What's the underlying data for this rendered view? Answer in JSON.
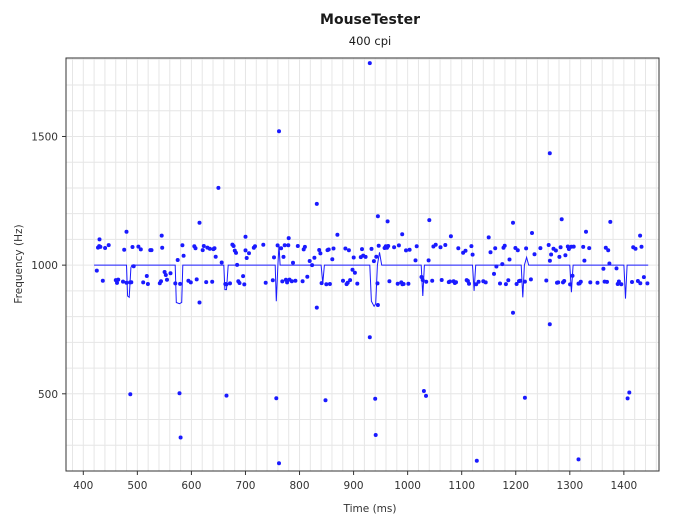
{
  "chart_data": {
    "type": "scatter",
    "title": "MouseTester",
    "subtitle": "400 cpi",
    "xlabel": "Time (ms)",
    "ylabel": "Frequency (Hz)",
    "xlim": [
      368,
      1465
    ],
    "ylim": [
      200,
      1805
    ],
    "x_ticks": [
      400,
      500,
      600,
      700,
      800,
      900,
      1000,
      1100,
      1200,
      1300,
      1400
    ],
    "y_ticks": [
      500,
      1000,
      1500
    ],
    "grid": true,
    "legend": "none",
    "colors": {
      "series": "#1a1aff",
      "text": "#1a1a1a",
      "grid": "#e6e6e6",
      "axis": "#333333"
    },
    "series": [
      {
        "kind": "scatter",
        "points": [
          [
            930,
            1785
          ],
          [
            762,
            1520
          ],
          [
            1263,
            1435
          ],
          [
            650,
            1300
          ],
          [
            832,
            1238
          ],
          [
            945,
            1190
          ],
          [
            963,
            1170
          ],
          [
            1040,
            1175
          ],
          [
            1195,
            1165
          ],
          [
            1285,
            1178
          ],
          [
            1375,
            1168
          ],
          [
            615,
            1165
          ],
          [
            430,
            1100
          ],
          [
            480,
            1130
          ],
          [
            545,
            1115
          ],
          [
            700,
            1110
          ],
          [
            780,
            1105
          ],
          [
            870,
            1118
          ],
          [
            990,
            1120
          ],
          [
            1080,
            1112
          ],
          [
            1150,
            1108
          ],
          [
            1230,
            1125
          ],
          [
            1330,
            1130
          ],
          [
            1430,
            1115
          ],
          [
            832,
            835
          ],
          [
            930,
            720
          ],
          [
            1195,
            815
          ],
          [
            1263,
            770
          ],
          [
            615,
            855
          ],
          [
            945,
            845
          ],
          [
            487,
            498
          ],
          [
            578,
            502
          ],
          [
            665,
            493
          ],
          [
            757,
            483
          ],
          [
            848,
            475
          ],
          [
            940,
            481
          ],
          [
            1030,
            511
          ],
          [
            1034,
            492
          ],
          [
            1217,
            485
          ],
          [
            1410,
            505
          ],
          [
            1407,
            482
          ],
          [
            580,
            330
          ],
          [
            941,
            340
          ],
          [
            762,
            230
          ],
          [
            1128,
            240
          ],
          [
            1316,
            245
          ]
        ]
      },
      {
        "kind": "trace",
        "points": [
          [
            420,
            1000
          ],
          [
            480,
            1000
          ],
          [
            482,
            880
          ],
          [
            485,
            875
          ],
          [
            488,
            990
          ],
          [
            490,
            1000
          ],
          [
            570,
            1000
          ],
          [
            572,
            855
          ],
          [
            578,
            850
          ],
          [
            582,
            855
          ],
          [
            584,
            1000
          ],
          [
            660,
            1000
          ],
          [
            662,
            905
          ],
          [
            665,
            905
          ],
          [
            668,
            1000
          ],
          [
            755,
            1000
          ],
          [
            757,
            860
          ],
          [
            760,
            1000
          ],
          [
            762,
            1080
          ],
          [
            764,
            1000
          ],
          [
            840,
            1000
          ],
          [
            843,
            930
          ],
          [
            846,
            1000
          ],
          [
            930,
            1000
          ],
          [
            933,
            860
          ],
          [
            938,
            840
          ],
          [
            941,
            850
          ],
          [
            944,
            1000
          ],
          [
            948,
            1050
          ],
          [
            952,
            1000
          ],
          [
            1025,
            1000
          ],
          [
            1028,
            880
          ],
          [
            1031,
            1000
          ],
          [
            1120,
            1000
          ],
          [
            1123,
            900
          ],
          [
            1126,
            1000
          ],
          [
            1210,
            1000
          ],
          [
            1213,
            875
          ],
          [
            1216,
            1000
          ],
          [
            1220,
            1030
          ],
          [
            1224,
            1000
          ],
          [
            1300,
            1000
          ],
          [
            1303,
            895
          ],
          [
            1306,
            1000
          ],
          [
            1400,
            1000
          ],
          [
            1403,
            870
          ],
          [
            1406,
            1000
          ],
          [
            1445,
            1000
          ]
        ]
      }
    ]
  }
}
